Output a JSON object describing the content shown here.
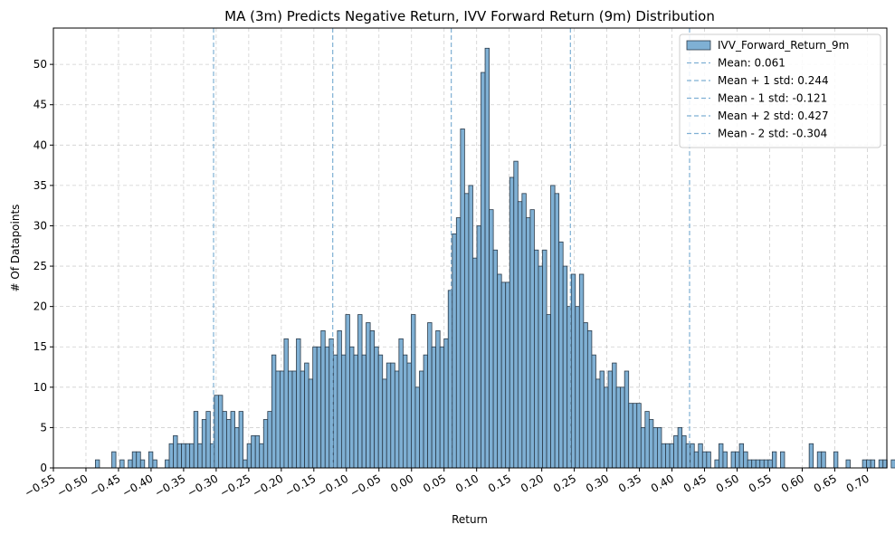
{
  "chart_data": {
    "type": "bar",
    "title": "MA (3m) Predicts Negative Return, IVV Forward Return (9m) Distribution",
    "xlabel": "Return",
    "ylabel": "# Of Datapoints",
    "xlim": [
      -0.55,
      0.73
    ],
    "ylim": [
      0,
      54.5
    ],
    "xticks": [
      -0.55,
      -0.5,
      -0.45,
      -0.4,
      -0.35,
      -0.3,
      -0.25,
      -0.2,
      -0.15,
      -0.1,
      -0.05,
      0.0,
      0.05,
      0.1,
      0.15,
      0.2,
      0.25,
      0.3,
      0.35,
      0.4,
      0.45,
      0.5,
      0.55,
      0.6,
      0.65,
      0.7
    ],
    "xtick_labels": [
      "−0.55",
      "−0.50",
      "−0.45",
      "−0.40",
      "−0.35",
      "−0.30",
      "−0.25",
      "−0.20",
      "−0.15",
      "−0.10",
      "−0.05",
      "0.00",
      "0.05",
      "0.10",
      "0.15",
      "0.20",
      "0.25",
      "0.30",
      "0.35",
      "0.40",
      "0.45",
      "0.50",
      "0.55",
      "0.60",
      "0.65",
      "0.70"
    ],
    "yticks": [
      0,
      5,
      10,
      15,
      20,
      25,
      30,
      35,
      40,
      45,
      50
    ],
    "ytick_labels": [
      "0",
      "5",
      "10",
      "15",
      "20",
      "25",
      "30",
      "35",
      "40",
      "45",
      "50"
    ],
    "grid": true,
    "legend_position": "top-right",
    "bin_start": -0.4855,
    "bin_width": 0.0063,
    "series": [
      {
        "name": "IVV_Forward_Return_9m",
        "color": "#7fb0d4",
        "edge_color": "#2b3b4a",
        "values": [
          1,
          0,
          0,
          0,
          2,
          0,
          1,
          0,
          1,
          2,
          2,
          1,
          0,
          2,
          1,
          0,
          0,
          1,
          3,
          4,
          3,
          3,
          3,
          3,
          7,
          3,
          6,
          7,
          3,
          9,
          9,
          7,
          6,
          7,
          5,
          7,
          1,
          3,
          4,
          4,
          3,
          6,
          7,
          14,
          12,
          12,
          16,
          12,
          12,
          16,
          12,
          13,
          11,
          15,
          15,
          17,
          15,
          16,
          14,
          17,
          14,
          19,
          15,
          14,
          19,
          14,
          18,
          17,
          15,
          14,
          11,
          13,
          13,
          12,
          16,
          14,
          13,
          19,
          10,
          12,
          14,
          18,
          15,
          17,
          15,
          16,
          22,
          29,
          31,
          42,
          34,
          35,
          26,
          30,
          49,
          52,
          32,
          27,
          24,
          23,
          23,
          36,
          38,
          33,
          34,
          31,
          32,
          27,
          25,
          27,
          19,
          35,
          34,
          28,
          25,
          20,
          24,
          20,
          24,
          18,
          17,
          14,
          11,
          12,
          10,
          12,
          13,
          10,
          10,
          12,
          8,
          8,
          8,
          5,
          7,
          6,
          5,
          5,
          3,
          3,
          3,
          4,
          5,
          4,
          3,
          3,
          2,
          3,
          2,
          2,
          0,
          1,
          3,
          2,
          0,
          2,
          2,
          3,
          2,
          1,
          1,
          1,
          1,
          1,
          1,
          2,
          0,
          2,
          0,
          0,
          0,
          0,
          0,
          0,
          3,
          0,
          2,
          2,
          0,
          0,
          2,
          0,
          0,
          1,
          0,
          0,
          0,
          1,
          1,
          1,
          0,
          1,
          1,
          0,
          1
        ]
      }
    ],
    "reference_lines": [
      {
        "label": "Mean: 0.061",
        "x": 0.061
      },
      {
        "label": "Mean + 1 std: 0.244",
        "x": 0.244
      },
      {
        "label": "Mean - 1 std: -0.121",
        "x": -0.121
      },
      {
        "label": "Mean + 2 std: 0.427",
        "x": 0.427
      },
      {
        "label": "Mean - 2 std: -0.304",
        "x": -0.304
      }
    ],
    "reference_line_color": "#7fb0d4"
  }
}
